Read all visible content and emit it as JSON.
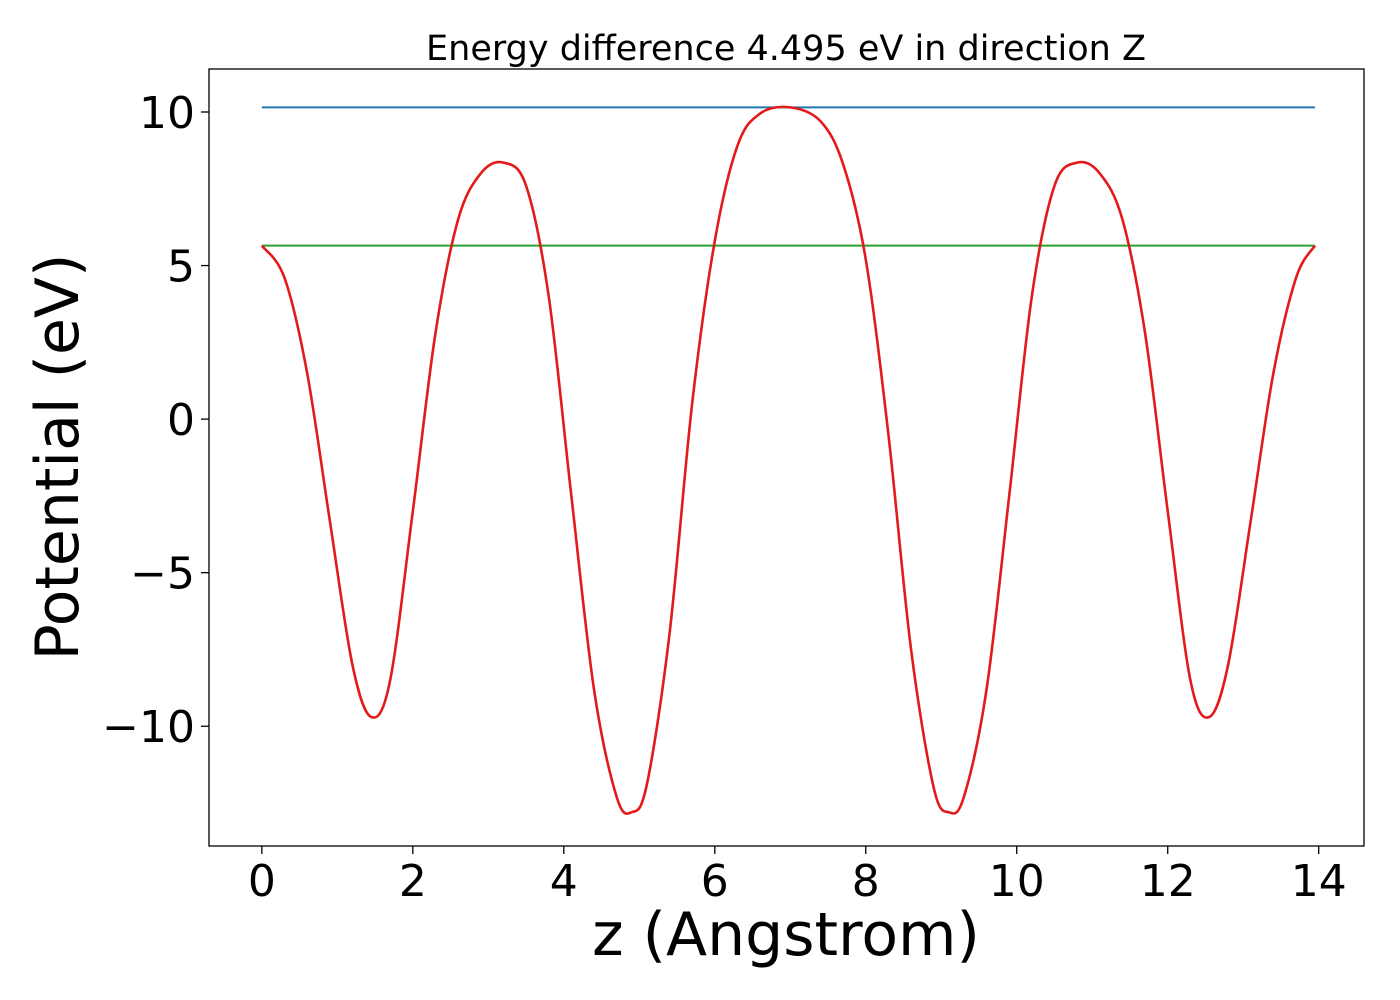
{
  "chart_data": {
    "type": "line",
    "title": "Energy difference 4.495 eV in direction Z",
    "xlabel": "z (Angstrom)",
    "ylabel": "Potential (eV)",
    "xlim": [
      -0.7,
      14.6
    ],
    "ylim": [
      -13.9,
      11.4
    ],
    "xticks": [
      0,
      2,
      4,
      6,
      8,
      10,
      12,
      14
    ],
    "yticks": [
      -10,
      -5,
      0,
      5,
      10
    ],
    "grid": false,
    "legend": "none",
    "series": [
      {
        "color": "#1f77b4",
        "x": [
          0,
          13.95
        ],
        "y": [
          10.15,
          10.15
        ]
      },
      {
        "color": "#2ca02c",
        "x": [
          0,
          13.95
        ],
        "y": [
          5.65,
          5.65
        ]
      },
      {
        "color": "#e31a1c",
        "x": [
          0,
          0.3,
          0.6,
          0.9,
          1.2,
          1.45,
          1.7,
          2.0,
          2.3,
          2.6,
          2.9,
          3.2,
          3.5,
          3.8,
          4.1,
          4.4,
          4.7,
          4.9,
          5.1,
          5.4,
          5.7,
          6.0,
          6.3,
          6.6,
          7.0,
          7.4,
          7.7,
          8.0,
          8.3,
          8.6,
          8.9,
          9.1,
          9.3,
          9.6,
          9.9,
          10.2,
          10.5,
          10.8,
          11.1,
          11.4,
          11.7,
          12.0,
          12.3,
          12.55,
          12.8,
          13.1,
          13.4,
          13.7,
          13.95
        ],
        "y": [
          5.65,
          4.6,
          1.5,
          -3.3,
          -8.0,
          -9.7,
          -8.5,
          -3.0,
          2.8,
          6.5,
          8.0,
          8.35,
          7.6,
          4.0,
          -2.5,
          -8.8,
          -12.3,
          -12.8,
          -11.9,
          -7.0,
          0.5,
          5.8,
          8.9,
          9.95,
          10.15,
          9.7,
          8.3,
          5.2,
          -0.5,
          -7.5,
          -12.0,
          -12.8,
          -12.3,
          -8.8,
          -2.5,
          4.0,
          7.6,
          8.35,
          8.0,
          6.5,
          2.8,
          -3.0,
          -8.5,
          -9.7,
          -8.0,
          -3.3,
          1.5,
          4.6,
          5.65
        ]
      }
    ]
  }
}
